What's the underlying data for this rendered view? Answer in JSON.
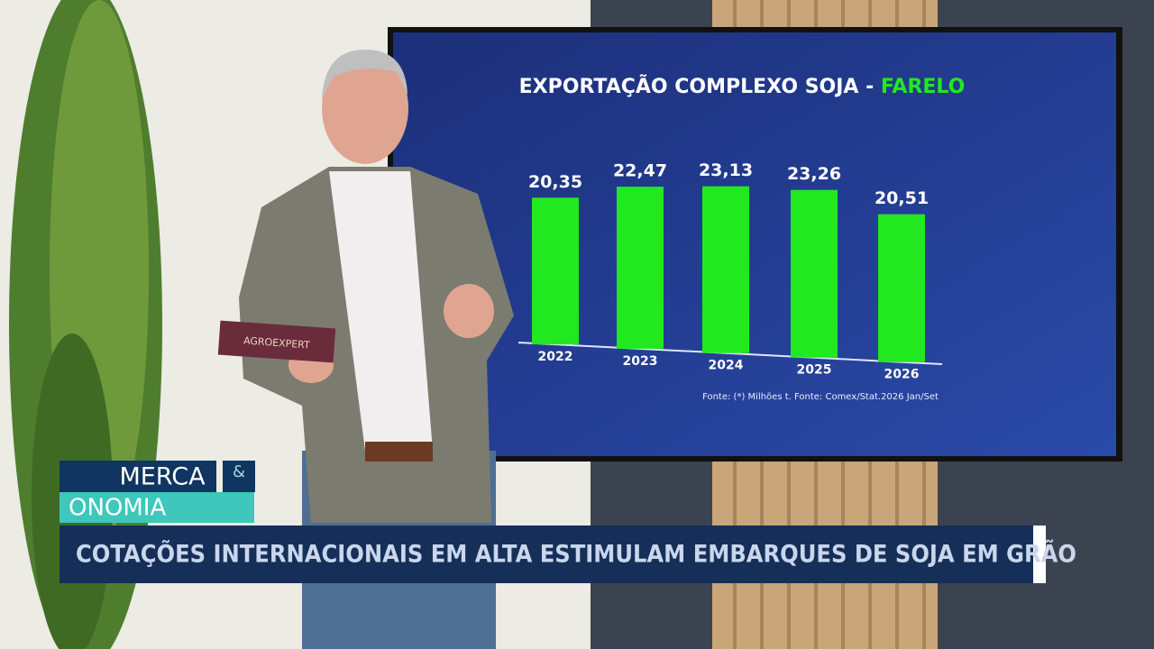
{
  "chart_data": {
    "type": "bar",
    "title": "EXPORTAÇÃO COMPLEXO SOJA - ",
    "title_highlight": "FARELO",
    "categories": [
      "2022",
      "2023",
      "2024",
      "2025",
      "2026"
    ],
    "values": [
      20.35,
      22.47,
      23.13,
      23.26,
      20.51
    ],
    "value_labels": [
      "20,35",
      "22,47",
      "23,13",
      "23,26",
      "20,51"
    ],
    "color": "#22e81f",
    "footnote": "Fonte: (*) Milhões t. Fonte: Comex/Stat.2026 Jan/Set"
  },
  "card_text": "AGROEXPERT",
  "lower_third": {
    "logo_top": "MERCA",
    "logo_amp": "&",
    "logo_bottom": "ONOMIA",
    "headline": "COTAÇÕES INTERNACIONAIS EM ALTA ESTIMULAM EMBARQUES DE SOJA EM GRÃO"
  }
}
